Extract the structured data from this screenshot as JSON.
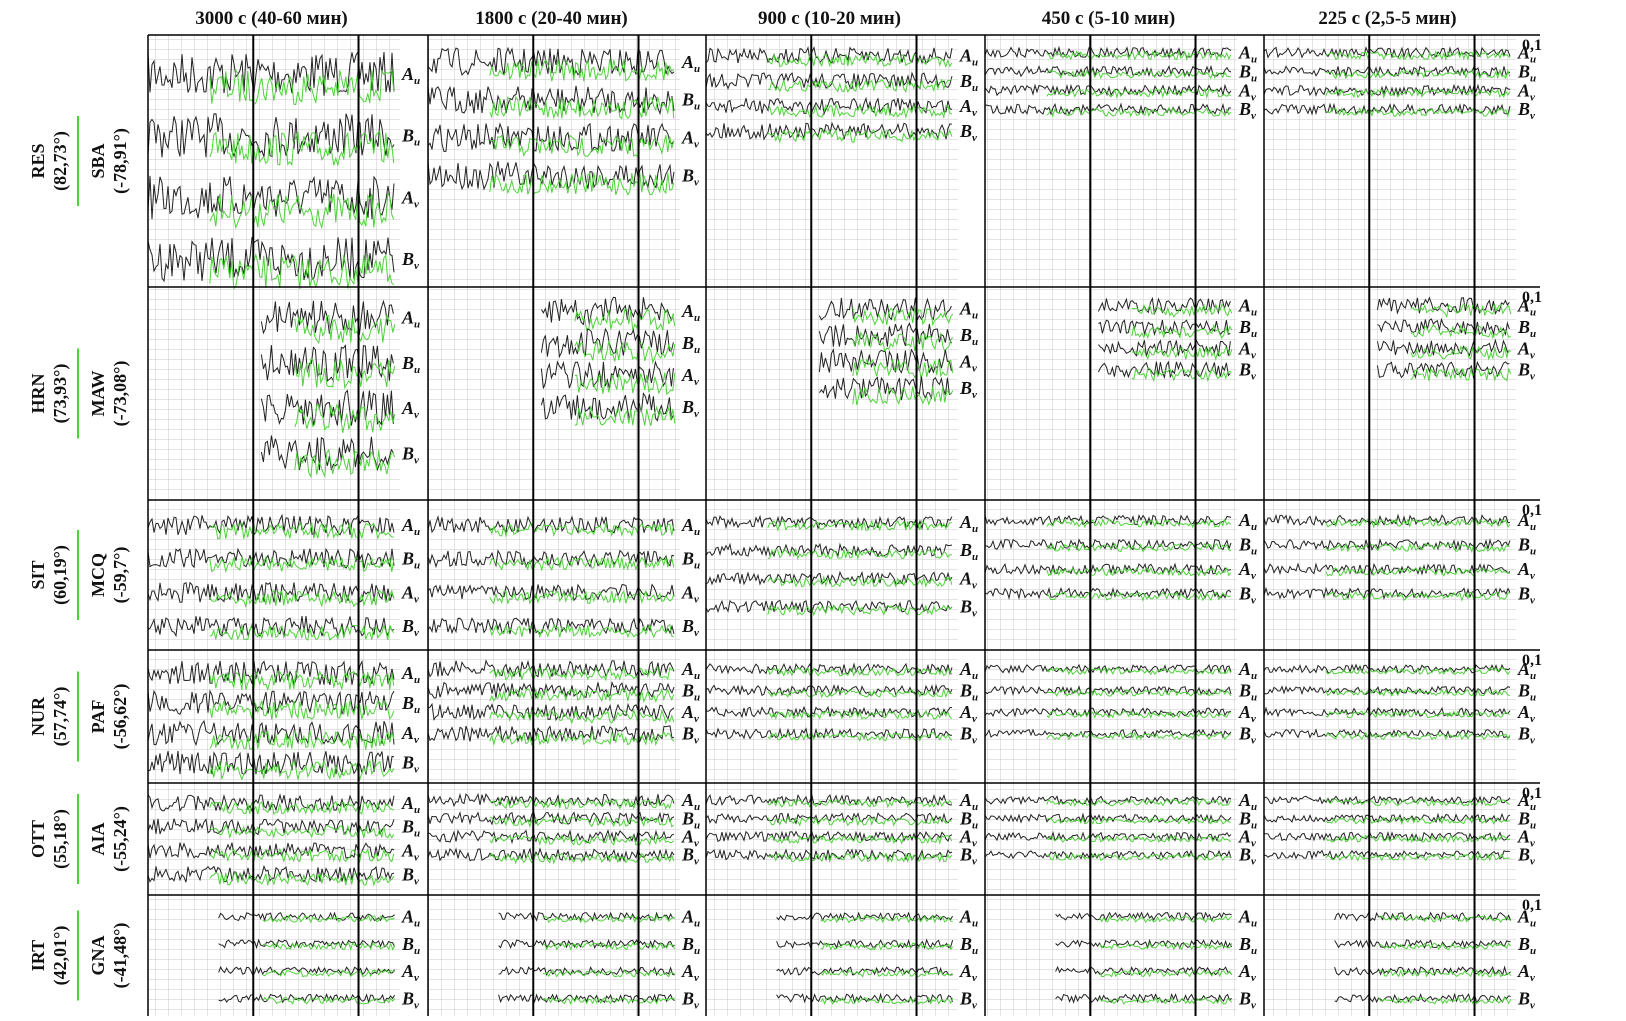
{
  "column_headers": [
    "3000 с (40-60 мин)",
    "1800 с (20-40 мин)",
    "900 с (10-20 мин)",
    "450 с (5-10 мин)",
    "225 с (2,5-5 мин)"
  ],
  "rows": [
    {
      "left_station": "RES",
      "left_coord": "(82,73°)",
      "right_station": "SBA",
      "right_coord": "(-78,91°)",
      "scale": "0,1"
    },
    {
      "left_station": "HRN",
      "left_coord": "(73,93°)",
      "right_station": "MAW",
      "right_coord": "(-73,08°)",
      "scale": "0,1"
    },
    {
      "left_station": "SIT",
      "left_coord": "(60,19°)",
      "right_station": "MCQ",
      "right_coord": "(-59,7°)",
      "scale": "0,1"
    },
    {
      "left_station": "NUR",
      "left_coord": "(57,74°)",
      "right_station": "PAF",
      "right_coord": "(-56,62°)",
      "scale": "0,1"
    },
    {
      "left_station": "OTT",
      "left_coord": "(55,18°)",
      "right_station": "AIA",
      "right_coord": "(-55,24°)",
      "scale": "0,1"
    },
    {
      "left_station": "IRT",
      "left_coord": "(42,01°)",
      "right_station": "GNA",
      "right_coord": "(-41,48°)",
      "scale": "0,1"
    }
  ],
  "trace_labels": [
    {
      "letter": "A",
      "sub": "u"
    },
    {
      "letter": "B",
      "sub": "u"
    },
    {
      "letter": "A",
      "sub": "v"
    },
    {
      "letter": "B",
      "sub": "v"
    }
  ]
}
